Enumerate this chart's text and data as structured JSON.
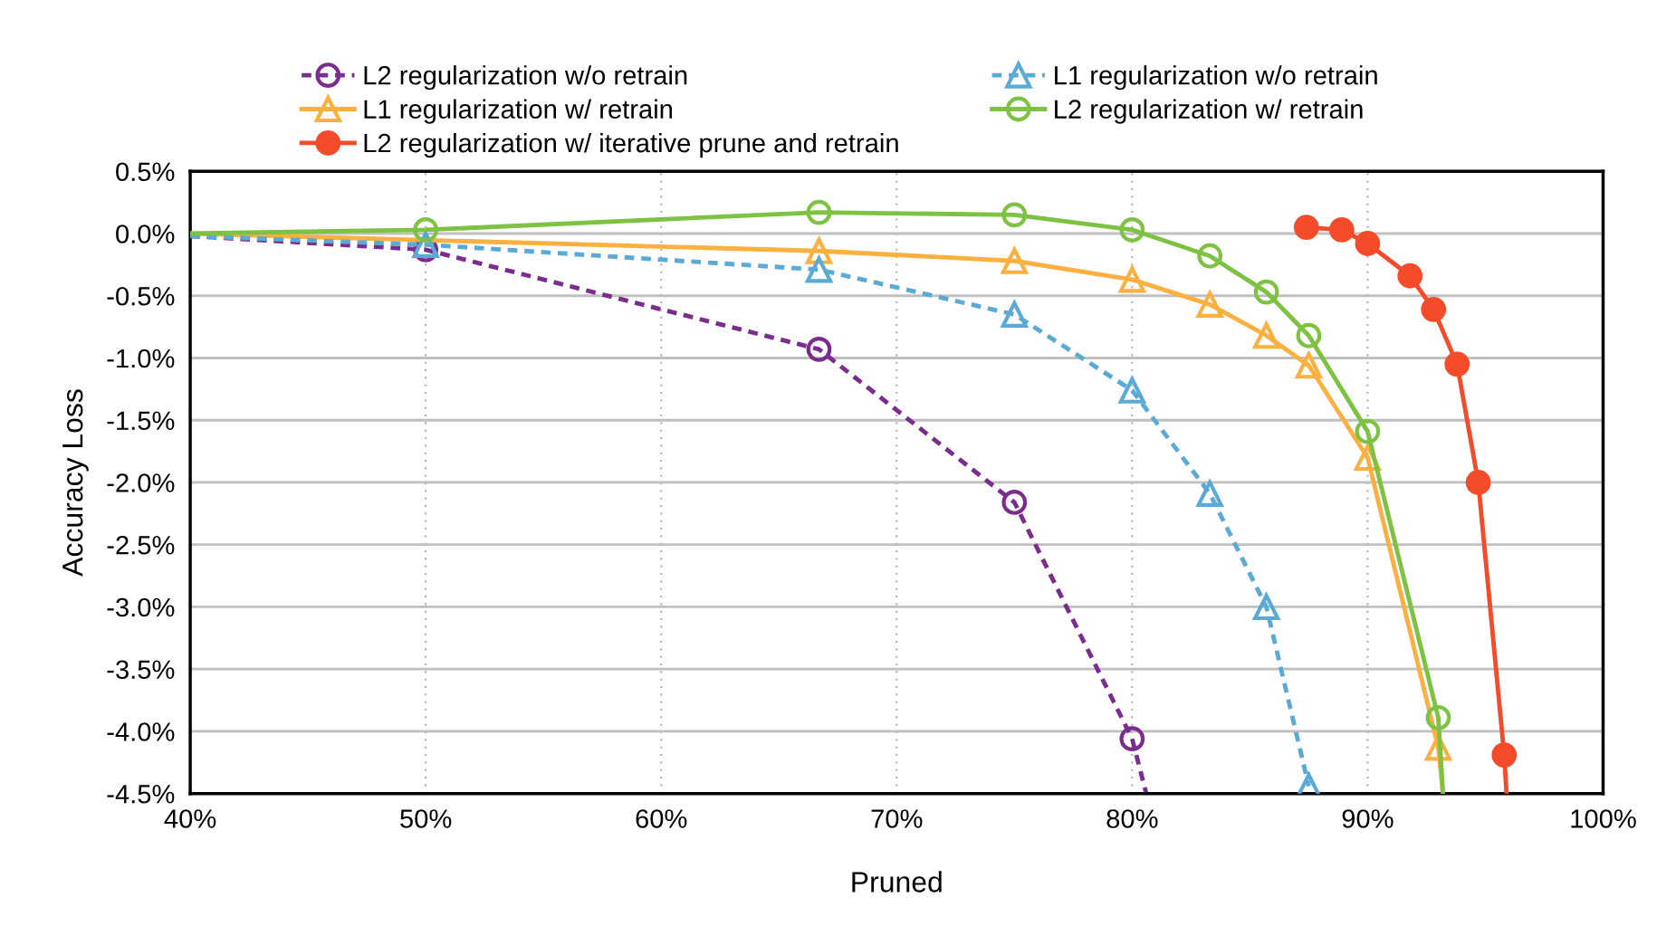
{
  "chart_data": {
    "type": "line",
    "xlabel": "Pruned",
    "ylabel": "Accuracy Loss",
    "xlim": [
      40,
      100
    ],
    "ylim": [
      -4.5,
      0.5
    ],
    "xticks": [
      {
        "value": 40,
        "label": "40%"
      },
      {
        "value": 50,
        "label": "50%"
      },
      {
        "value": 60,
        "label": "60%"
      },
      {
        "value": 70,
        "label": "70%"
      },
      {
        "value": 80,
        "label": "80%"
      },
      {
        "value": 90,
        "label": "90%"
      },
      {
        "value": 100,
        "label": "100%"
      }
    ],
    "yticks": [
      {
        "value": 0.5,
        "label": "0.5%"
      },
      {
        "value": 0,
        "label": "0.0%"
      },
      {
        "value": -0.5,
        "label": "-0.5%"
      },
      {
        "value": -1,
        "label": "-1.0%"
      },
      {
        "value": -1.5,
        "label": "-1.5%"
      },
      {
        "value": -2,
        "label": "-2.0%"
      },
      {
        "value": -2.5,
        "label": "-2.5%"
      },
      {
        "value": -3,
        "label": "-3.0%"
      },
      {
        "value": -3.5,
        "label": "-3.5%"
      },
      {
        "value": -4,
        "label": "-4.0%"
      },
      {
        "value": -4.5,
        "label": "-4.5%"
      }
    ],
    "grid": true,
    "legend": "top",
    "series": [
      {
        "name": "L2 regularization w/o retrain",
        "color": "#7b2d8e",
        "marker": "circle",
        "line_style": "dashed",
        "x": [
          40,
          50,
          66.7,
          75,
          80,
          80.6
        ],
        "values": [
          -0.02,
          -0.13,
          -0.93,
          -2.16,
          -4.06,
          -4.5
        ]
      },
      {
        "name": "L1 regularization w/ retrain",
        "color": "#fbb040",
        "marker": "triangle",
        "line_style": "solid",
        "x": [
          40,
          66.7,
          75,
          80,
          83.3,
          85.7,
          87.5,
          90,
          93.0,
          93.2
        ],
        "values": [
          0,
          -0.14,
          -0.22,
          -0.37,
          -0.57,
          -0.82,
          -1.06,
          -1.8,
          -4.13,
          -4.5
        ]
      },
      {
        "name": "L2 regularization w/ iterative prune and retrain",
        "color": "#f44b2a",
        "marker": "circle_filled",
        "line_style": "solid",
        "x": [
          87.4,
          88.9,
          90.0,
          91.8,
          92.8,
          93.8,
          94.7,
          95.8,
          95.9
        ],
        "values": [
          0.05,
          0.03,
          -0.08,
          -0.34,
          -0.61,
          -1.05,
          -2.0,
          -4.19,
          -4.5
        ]
      },
      {
        "name": "L1 regularization w/o retrain",
        "color": "#5aaad5",
        "marker": "triangle",
        "line_style": "dashed",
        "x": [
          40,
          50,
          66.7,
          75,
          80,
          83.3,
          85.7,
          87.5
        ],
        "values": [
          -0.02,
          -0.09,
          -0.29,
          -0.65,
          -1.26,
          -2.09,
          -3.0,
          -4.44
        ]
      },
      {
        "name": "L2 regularization w/ retrain",
        "color": "#7dc242",
        "marker": "circle",
        "line_style": "solid",
        "x": [
          40,
          50,
          66.7,
          75,
          80,
          83.3,
          85.7,
          87.5,
          90,
          93.0,
          93.2
        ],
        "values": [
          0,
          0.03,
          0.17,
          0.15,
          0.03,
          -0.18,
          -0.47,
          -0.82,
          -1.59,
          -3.89,
          -4.5
        ]
      }
    ]
  }
}
